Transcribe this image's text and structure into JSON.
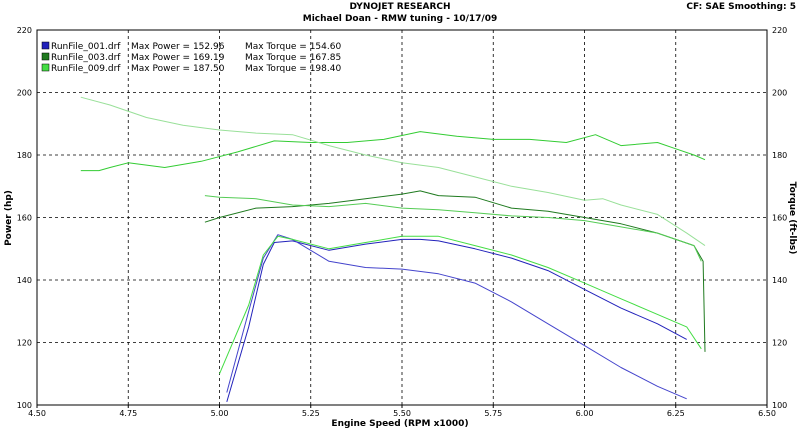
{
  "header": {
    "title": "DYNOJET RESEARCH",
    "subtitle": "Michael Doan - RMW tuning - 10/17/09",
    "info": "CF: SAE  Smoothing: 5"
  },
  "chart_data": {
    "type": "line",
    "title": "DYNOJET RESEARCH",
    "subtitle": "Michael Doan - RMW tuning - 10/17/09",
    "xlabel": "Engine Speed (RPM x1000)",
    "ylabel": "Power (hp)",
    "y2label": "Torque (ft-lbs)",
    "xlim": [
      4.5,
      6.5
    ],
    "ylim": [
      100,
      220
    ],
    "y2lim": [
      100,
      220
    ],
    "xticks": [
      "4.50",
      "4.75",
      "5.00",
      "5.25",
      "5.50",
      "5.75",
      "6.00",
      "6.25",
      "6.50"
    ],
    "yticks": [
      "100",
      "120",
      "140",
      "160",
      "180",
      "200",
      "220"
    ],
    "grid": true,
    "legend_position": "top-left",
    "legend": [
      {
        "file": "RunFile_001.drf",
        "max_power": "Max Power = 152.96",
        "max_torque": "Max Torque = 154.60",
        "color": "#2222bb"
      },
      {
        "file": "RunFile_003.drf",
        "max_power": "Max Power = 169.19",
        "max_torque": "Max Torque = 167.85",
        "color": "#1f7a1f"
      },
      {
        "file": "RunFile_009.drf",
        "max_power": "Max Power = 187.50",
        "max_torque": "Max Torque = 198.40",
        "color": "#44dd44"
      }
    ],
    "series": [
      {
        "run": "RunFile_001.drf",
        "kind": "power",
        "color": "#2222bb",
        "x": [
          5.02,
          5.08,
          5.12,
          5.15,
          5.2,
          5.3,
          5.4,
          5.5,
          5.55,
          5.6,
          5.7,
          5.8,
          5.9,
          6.0,
          6.1,
          6.2,
          6.28
        ],
        "y": [
          101,
          125,
          145,
          152,
          152.5,
          149.5,
          151.5,
          153,
          153,
          152.5,
          150,
          147,
          143,
          137,
          131,
          126,
          121
        ]
      },
      {
        "run": "RunFile_001.drf",
        "kind": "torque",
        "color": "#4444cc",
        "x": [
          5.02,
          5.08,
          5.12,
          5.16,
          5.2,
          5.3,
          5.4,
          5.5,
          5.6,
          5.7,
          5.8,
          5.9,
          6.0,
          6.1,
          6.2,
          6.28
        ],
        "y": [
          104,
          130,
          147,
          154.5,
          153,
          146,
          144,
          143.5,
          142,
          139,
          133,
          126,
          119,
          112,
          106,
          102
        ]
      },
      {
        "run": "RunFile_009.drf",
        "kind": "power",
        "color": "#44dd44",
        "x": [
          5.0,
          5.08,
          5.12,
          5.16,
          5.2,
          5.3,
          5.4,
          5.5,
          5.6,
          5.7,
          5.8,
          5.9,
          6.0,
          6.1,
          6.2,
          6.28,
          6.32
        ],
        "y": [
          110,
          132,
          148,
          154,
          153,
          150,
          152,
          154,
          154,
          151,
          148,
          144,
          139,
          134,
          129,
          125,
          118
        ]
      },
      {
        "run": "RunFile_003.drf",
        "kind": "torque",
        "color": "#1f7a1f",
        "x": [
          4.96,
          5.0,
          5.1,
          5.2,
          5.3,
          5.4,
          5.5,
          5.55,
          5.6,
          5.7,
          5.8,
          5.9,
          6.0,
          6.1,
          6.2,
          6.3,
          6.325,
          6.33
        ],
        "y": [
          158.5,
          160,
          163,
          163.5,
          164.5,
          166,
          167.5,
          168.5,
          167,
          166.5,
          163,
          162,
          160,
          158,
          155,
          151,
          146,
          117
        ]
      },
      {
        "run": "RunFile_009.drf",
        "kind": "torque",
        "color": "#55cc55",
        "x": [
          4.96,
          5.0,
          5.1,
          5.2,
          5.3,
          5.4,
          5.5,
          5.6,
          5.7,
          5.8,
          5.9,
          6.0,
          6.1,
          6.2,
          6.3,
          6.32
        ],
        "y": [
          167,
          166.5,
          166,
          164,
          163.5,
          164.5,
          163,
          162.5,
          161.5,
          160.5,
          160,
          159,
          157,
          155,
          151,
          146
        ]
      },
      {
        "run": "RunFile_009.drf",
        "kind": "power",
        "color": "#33cc33",
        "x": [
          4.62,
          4.67,
          4.7,
          4.75,
          4.85,
          4.95,
          5.05,
          5.15,
          5.25,
          5.35,
          5.45,
          5.55,
          5.65,
          5.75,
          5.85,
          5.95,
          6.03,
          6.1,
          6.2,
          6.25,
          6.3,
          6.33
        ],
        "y": [
          175,
          175,
          176,
          177.5,
          176,
          178,
          181,
          184.5,
          184,
          184,
          185,
          187.5,
          186,
          185,
          185,
          184,
          186.5,
          183,
          184,
          182,
          180,
          178.5
        ]
      },
      {
        "run": "RunFile_009.drf",
        "kind": "torque",
        "color": "#99e099",
        "x": [
          4.62,
          4.7,
          4.8,
          4.9,
          5.0,
          5.1,
          5.2,
          5.3,
          5.4,
          5.5,
          5.6,
          5.7,
          5.8,
          5.9,
          6.0,
          6.05,
          6.1,
          6.2,
          6.28,
          6.33
        ],
        "y": [
          198.5,
          196,
          192,
          189.5,
          188,
          187,
          186.5,
          183,
          180,
          177.5,
          176,
          173,
          170,
          168,
          165.5,
          166,
          164,
          161,
          155,
          151
        ]
      }
    ]
  }
}
